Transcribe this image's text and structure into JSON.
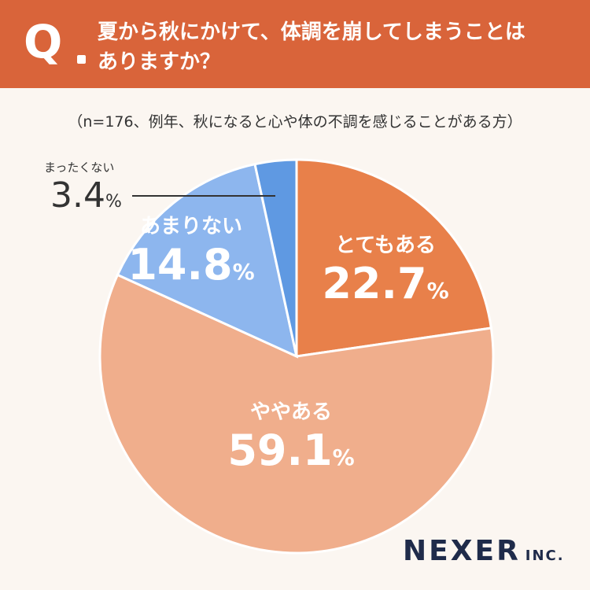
{
  "header": {
    "q_mark": "Q",
    "question_line1": "夏から秋にかけて、体調を崩してしまうことは",
    "question_line2": "ありますか？"
  },
  "note": "（n=176、例年、秋になると心や体の不調を感じることがある方）",
  "colors": {
    "header_bg": "#d9643a",
    "totemo_aru": "#e8804a",
    "yaya_aru": "#f0ae8c",
    "amari_nai": "#8db6ee",
    "mattaku_nai": "#5f99e2"
  },
  "chart_data": {
    "type": "pie",
    "slices": [
      {
        "label": "とてもある",
        "value": 22.7,
        "display": "22.7"
      },
      {
        "label": "ややある",
        "value": 59.1,
        "display": "59.1"
      },
      {
        "label": "あまりない",
        "value": 14.8,
        "display": "14.8"
      },
      {
        "label": "まったくない",
        "value": 3.4,
        "display": "3.4"
      }
    ],
    "unit": "%",
    "start": "12 o'clock",
    "direction": "clockwise"
  },
  "logo": {
    "name": "NEXER",
    "suffix": "INC."
  }
}
